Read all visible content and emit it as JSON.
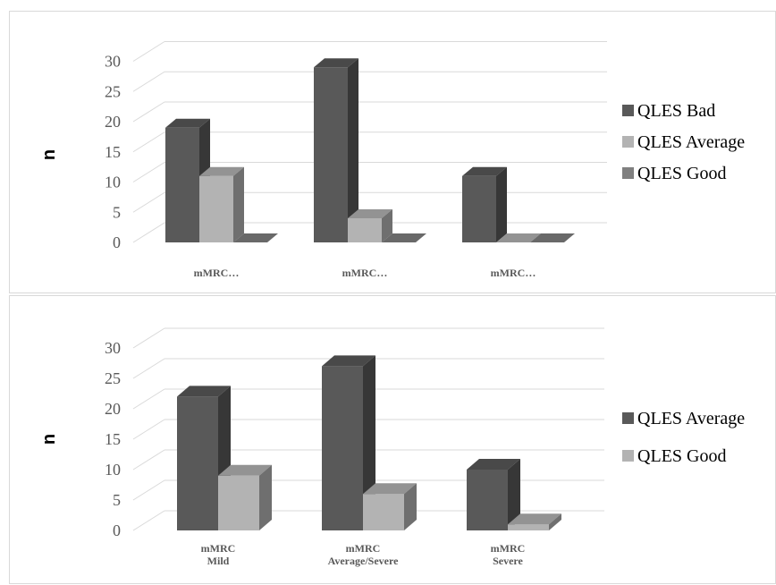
{
  "chart_data": [
    {
      "type": "bar",
      "three_d": true,
      "ylabel": "n",
      "ylim": [
        0,
        30
      ],
      "yticks": [
        0,
        5,
        10,
        15,
        20,
        25,
        30
      ],
      "categories": [
        "mMRC…",
        "mMRC…",
        "mMRC…"
      ],
      "series": [
        {
          "name": "QLES Bad",
          "values": [
            19,
            29,
            11
          ],
          "color": "#595959"
        },
        {
          "name": "QLES Average",
          "values": [
            11,
            4,
            0
          ],
          "color": "#b3b3b3"
        },
        {
          "name": "QLES Good",
          "values": [
            0,
            0,
            0
          ],
          "color": "#808080"
        }
      ],
      "legend": "right"
    },
    {
      "type": "bar",
      "three_d": true,
      "ylabel": "n",
      "ylim": [
        0,
        30
      ],
      "yticks": [
        0,
        5,
        10,
        15,
        20,
        25,
        30
      ],
      "categories": [
        [
          "mMRC",
          "Mild"
        ],
        [
          "mMRC",
          "Average/Severe"
        ],
        [
          "mMRC",
          "Severe"
        ]
      ],
      "series": [
        {
          "name": "QLES Average",
          "values": [
            22,
            27,
            10
          ],
          "color": "#595959"
        },
        {
          "name": "QLES Good",
          "values": [
            9,
            6,
            1
          ],
          "color": "#b3b3b3"
        }
      ],
      "legend": "right"
    }
  ]
}
